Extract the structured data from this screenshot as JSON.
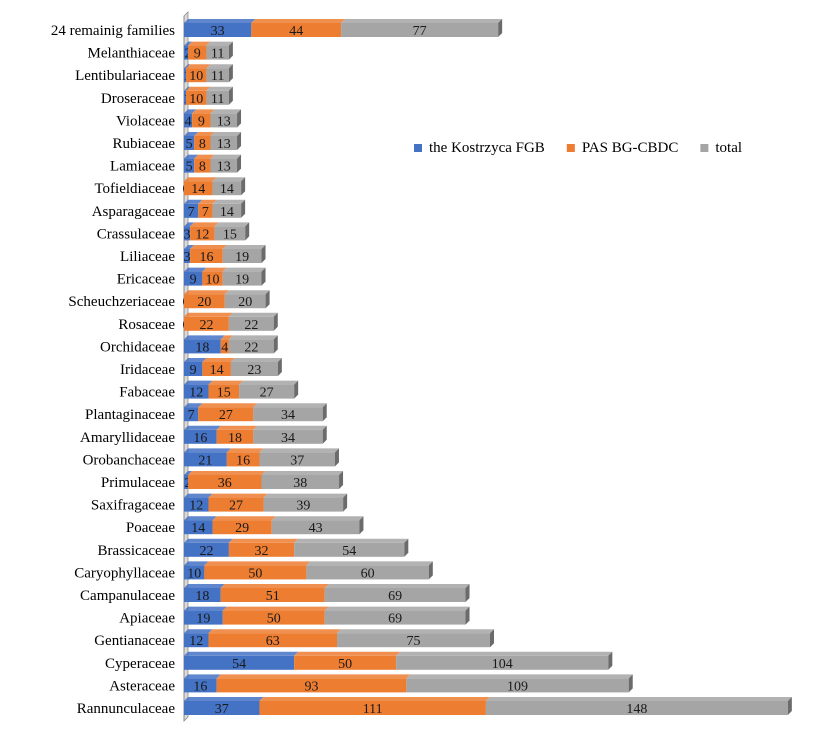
{
  "chart_data": {
    "type": "bar",
    "orientation": "horizontal",
    "stacked": true,
    "categories": [
      "24 remainig families",
      "Melanthiaceae",
      "Lentibulariaceae",
      "Droseraceae",
      "Violaceae",
      "Rubiaceae",
      "Lamiaceae",
      "Tofieldiaceae",
      "Asparagaceae",
      "Crassulaceae",
      "Liliaceae",
      "Ericaceae",
      "Scheuchzeriaceae",
      "Rosaceae",
      "Orchidaceae",
      "Iridaceae",
      "Fabaceae",
      "Plantaginaceae",
      "Amaryllidaceae",
      "Orobanchaceae",
      "Primulaceae",
      "Saxifragaceae",
      "Poaceae",
      "Brassicaceae",
      "Caryophyllaceae",
      "Campanulaceae",
      "Apiaceae",
      "Gentianaceae",
      "Cyperaceae",
      "Asteraceae",
      "Rannunculaceae"
    ],
    "series": [
      {
        "name": "the Kostrzyca FGB",
        "color": "#4472C4",
        "values": [
          33,
          2,
          1,
          1,
          4,
          5,
          5,
          0,
          7,
          3,
          3,
          9,
          0,
          0,
          18,
          9,
          12,
          7,
          16,
          21,
          2,
          12,
          14,
          22,
          10,
          18,
          19,
          12,
          54,
          16,
          37
        ],
        "labels": [
          "33",
          "2",
          "1",
          "1",
          "4",
          "5",
          "5",
          "0",
          "7",
          "3",
          "3",
          "9",
          "0",
          "0",
          "18",
          "9",
          "12",
          "7",
          "16",
          "21",
          "2",
          "12",
          "14",
          "22",
          "10",
          "18",
          "19",
          "12",
          "54",
          "16",
          "37"
        ]
      },
      {
        "name": "PAS BG-CBDC",
        "color": "#ED7D31",
        "values": [
          44,
          9,
          10,
          10,
          9,
          8,
          8,
          14,
          7,
          12,
          16,
          10,
          20,
          22,
          4,
          14,
          15,
          27,
          18,
          16,
          36,
          27,
          29,
          32,
          50,
          51,
          50,
          63,
          50,
          93,
          111
        ],
        "labels": [
          "44",
          "9",
          "10",
          "10",
          "9",
          "8",
          "8",
          "14",
          "7",
          "12",
          "16",
          "10",
          "20",
          "22",
          "4",
          "14",
          "15",
          "27",
          "18",
          "16",
          "36",
          "27",
          "29",
          "32",
          "50",
          "51",
          "50",
          "63",
          "50",
          "93",
          "111"
        ]
      },
      {
        "name": "total",
        "color": "#A5A5A5",
        "values": [
          77,
          11,
          11,
          11,
          13,
          13,
          13,
          14,
          14,
          15,
          19,
          19,
          20,
          22,
          22,
          23,
          27,
          34,
          34,
          37,
          38,
          39,
          43,
          54,
          60,
          69,
          69,
          75,
          104,
          109,
          148
        ],
        "labels": [
          "77",
          "11",
          "11",
          "11",
          "13",
          "13",
          "13",
          "14",
          "14",
          "15",
          "19",
          "19",
          "20",
          "22",
          "22",
          "23",
          "27",
          "34",
          "34",
          "37",
          "38",
          "39",
          "43",
          "54",
          "60",
          "69",
          "69",
          "75",
          "104",
          "109",
          "148"
        ]
      }
    ],
    "xlim": [
      0,
      300
    ],
    "grid": false,
    "legend_position": "right",
    "title": "",
    "xlabel": "",
    "ylabel": ""
  }
}
